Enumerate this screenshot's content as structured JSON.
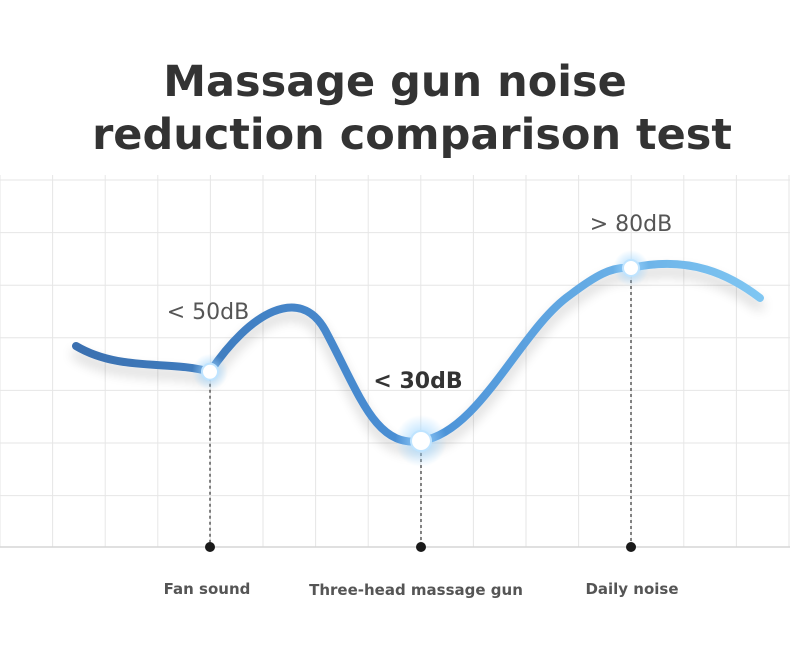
{
  "chart_data": {
    "type": "line",
    "title": [
      "Massage gun noise",
      "reduction comparison test"
    ],
    "categories": [
      "Fan sound",
      "Three-head massage gun",
      "Daily noise"
    ],
    "values": [
      50,
      30,
      80
    ],
    "value_labels": [
      "< 50dB",
      "< 30dB",
      "> 80dB"
    ],
    "unit": "dB",
    "highlight_index": 1,
    "grid": true,
    "colors": {
      "curve_start": "#3a70b0",
      "curve_mid": "#4a90d6",
      "curve_end": "#7fc6f2",
      "grid": "#e6e6e6",
      "axis": "#d6d6d6",
      "marker_dark": "#1a1a1a",
      "text": "#333333"
    }
  }
}
